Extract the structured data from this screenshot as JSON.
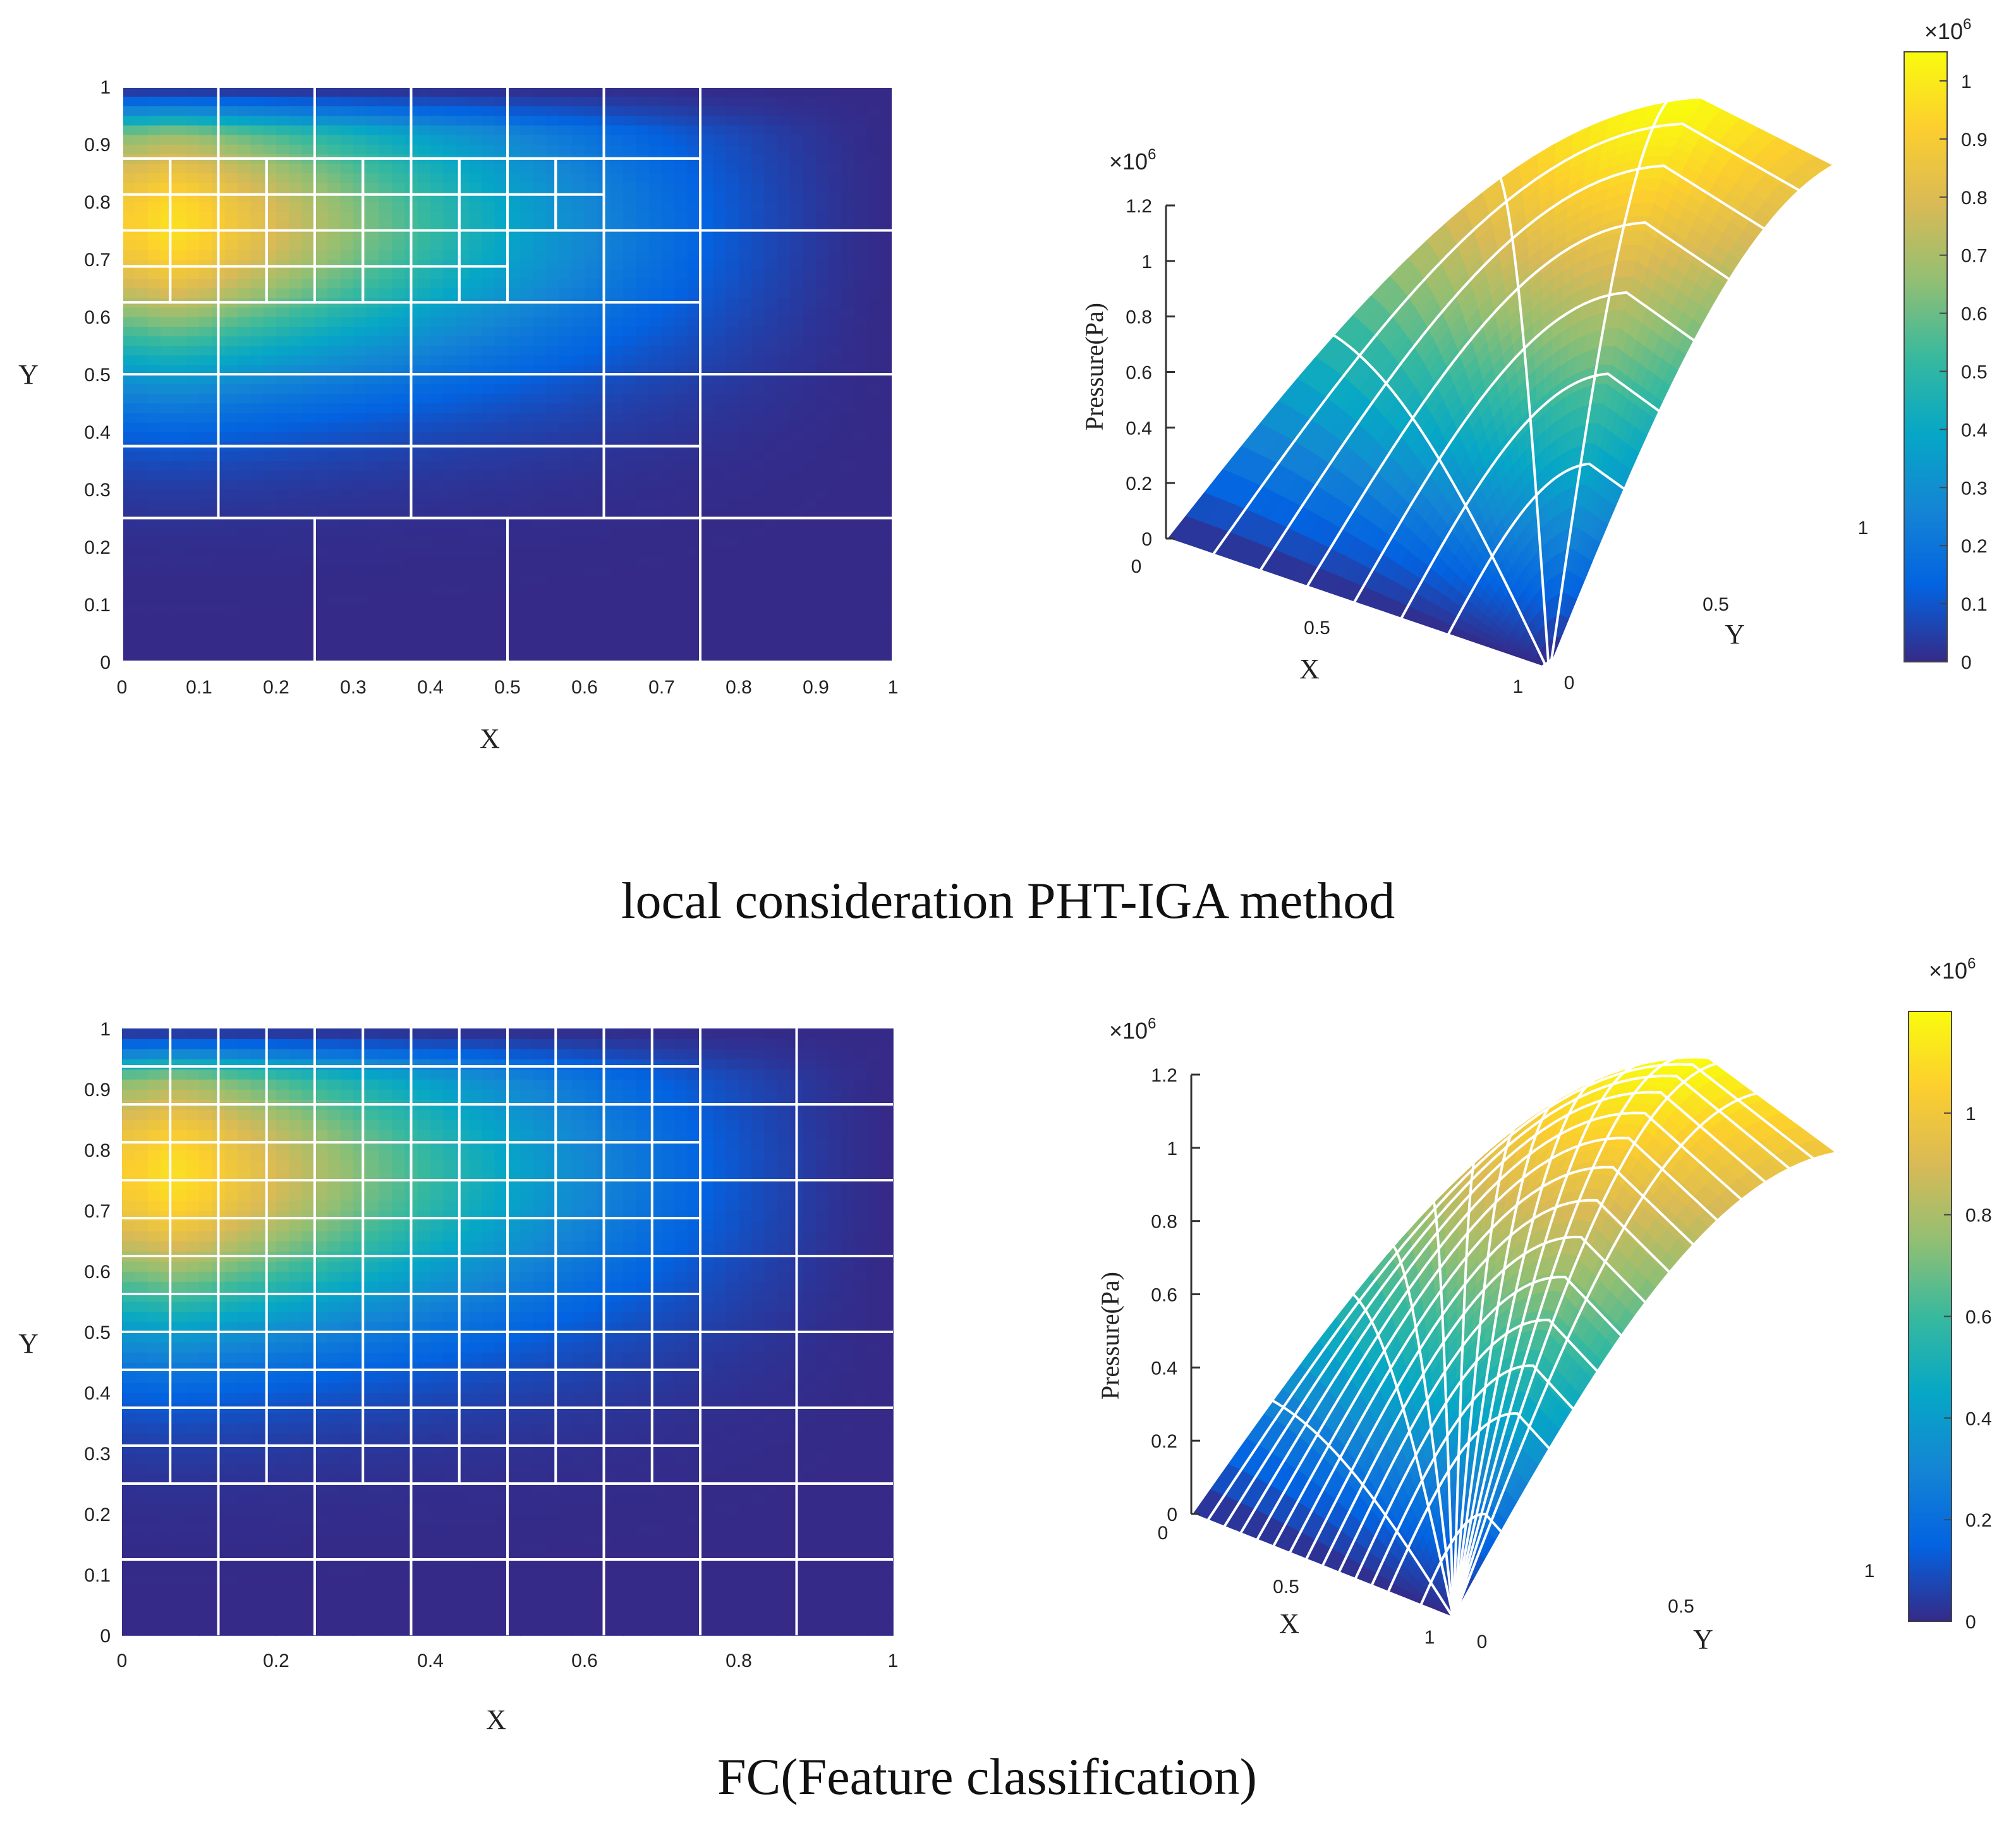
{
  "captions": {
    "top": "local consideration PHT-IGA method",
    "bottom": "FC(Feature classification)"
  },
  "colors": {
    "parula": [
      "#352a87",
      "#0363e1",
      "#1485d4",
      "#06a7c6",
      "#38b99e",
      "#92bf73",
      "#d9ba56",
      "#fcce2e",
      "#f9fb0e"
    ],
    "mesh_lines": "#ffffff",
    "text": "#222222"
  },
  "chart_data": [
    {
      "id": "top-2d",
      "type": "heatmap",
      "title": "",
      "xlabel": "X",
      "ylabel": "Y",
      "xlim": [
        0,
        1
      ],
      "ylim": [
        0,
        1
      ],
      "xticks": [
        "0",
        "0.1",
        "0.2",
        "0.3",
        "0.4",
        "0.5",
        "0.6",
        "0.7",
        "0.8",
        "0.9",
        "1"
      ],
      "yticks": [
        "0",
        "0.1",
        "0.2",
        "0.3",
        "0.4",
        "0.5",
        "0.6",
        "0.7",
        "0.8",
        "0.9",
        "1"
      ],
      "grid": false,
      "field_peak": [
        0.1,
        0.78
      ],
      "field_max": 1050000.0,
      "mesh_cells": [
        [
          0,
          0,
          0.25,
          0.25
        ],
        [
          0.25,
          0,
          0.5,
          0.25
        ],
        [
          0.5,
          0,
          0.75,
          0.25
        ],
        [
          0.75,
          0,
          1,
          0.25
        ],
        [
          0.75,
          0.25,
          1,
          0.5
        ],
        [
          0.75,
          0.5,
          1,
          0.75
        ],
        [
          0.75,
          0.75,
          1,
          1
        ],
        [
          0,
          0.25,
          0.125,
          0.375
        ],
        [
          0.125,
          0.25,
          0.375,
          0.375
        ],
        [
          0.375,
          0.25,
          0.625,
          0.375
        ],
        [
          0.625,
          0.25,
          0.75,
          0.375
        ],
        [
          0,
          0.375,
          0.125,
          0.5
        ],
        [
          0.125,
          0.375,
          0.375,
          0.5
        ],
        [
          0.375,
          0.375,
          0.625,
          0.5
        ],
        [
          0.625,
          0.375,
          0.75,
          0.5
        ],
        [
          0,
          0.5,
          0.125,
          0.625
        ],
        [
          0.125,
          0.5,
          0.375,
          0.625
        ],
        [
          0.375,
          0.5,
          0.625,
          0.625
        ],
        [
          0.625,
          0.5,
          0.75,
          0.625
        ],
        [
          0.625,
          0.625,
          0.75,
          0.75
        ],
        [
          0.625,
          0.75,
          0.75,
          0.875
        ],
        [
          0.625,
          0.875,
          0.75,
          1
        ],
        [
          0,
          0.875,
          0.125,
          1
        ],
        [
          0.125,
          0.875,
          0.25,
          1
        ],
        [
          0.25,
          0.875,
          0.375,
          1
        ],
        [
          0.375,
          0.875,
          0.5,
          1
        ],
        [
          0.5,
          0.875,
          0.625,
          1
        ],
        [
          0.5,
          0.625,
          0.625,
          0.75
        ],
        [
          0.5,
          0.75,
          0.5625,
          0.8125
        ],
        [
          0.5625,
          0.75,
          0.625,
          0.8125
        ],
        [
          0.5,
          0.8125,
          0.5625,
          0.875
        ],
        [
          0.5625,
          0.8125,
          0.625,
          0.875
        ],
        [
          0.375,
          0.625,
          0.4375,
          0.6875
        ],
        [
          0.4375,
          0.625,
          0.5,
          0.6875
        ],
        [
          0.375,
          0.6875,
          0.4375,
          0.75
        ],
        [
          0.4375,
          0.6875,
          0.5,
          0.75
        ],
        [
          0.375,
          0.75,
          0.4375,
          0.8125
        ],
        [
          0.4375,
          0.75,
          0.5,
          0.8125
        ],
        [
          0.375,
          0.8125,
          0.4375,
          0.875
        ],
        [
          0.4375,
          0.8125,
          0.5,
          0.875
        ],
        [
          0,
          0.625,
          0.0625,
          0.6875
        ],
        [
          0.0625,
          0.625,
          0.125,
          0.6875
        ],
        [
          0.125,
          0.625,
          0.1875,
          0.6875
        ],
        [
          0.1875,
          0.625,
          0.25,
          0.6875
        ],
        [
          0.25,
          0.625,
          0.3125,
          0.6875
        ],
        [
          0.3125,
          0.625,
          0.375,
          0.6875
        ],
        [
          0,
          0.6875,
          0.0625,
          0.75
        ],
        [
          0.0625,
          0.6875,
          0.125,
          0.75
        ],
        [
          0.125,
          0.6875,
          0.1875,
          0.75
        ],
        [
          0.1875,
          0.6875,
          0.25,
          0.75
        ],
        [
          0.25,
          0.6875,
          0.3125,
          0.75
        ],
        [
          0.3125,
          0.6875,
          0.375,
          0.75
        ],
        [
          0,
          0.75,
          0.0625,
          0.8125
        ],
        [
          0.0625,
          0.75,
          0.125,
          0.8125
        ],
        [
          0.125,
          0.75,
          0.1875,
          0.8125
        ],
        [
          0.1875,
          0.75,
          0.25,
          0.8125
        ],
        [
          0.25,
          0.75,
          0.3125,
          0.8125
        ],
        [
          0.3125,
          0.75,
          0.375,
          0.8125
        ],
        [
          0,
          0.8125,
          0.0625,
          0.875
        ],
        [
          0.0625,
          0.8125,
          0.125,
          0.875
        ],
        [
          0.125,
          0.8125,
          0.1875,
          0.875
        ],
        [
          0.1875,
          0.8125,
          0.25,
          0.875
        ],
        [
          0.25,
          0.8125,
          0.3125,
          0.875
        ],
        [
          0.3125,
          0.8125,
          0.375,
          0.875
        ]
      ]
    },
    {
      "id": "top-3d",
      "type": "surface",
      "title": "",
      "xlabel": "X",
      "ylabel": "Y",
      "zlabel": "Pressure(Pa)",
      "zmult": "×10",
      "zmult_exp": "6",
      "zlim": [
        0,
        1.2
      ],
      "zticks": [
        "0",
        "0.2",
        "0.4",
        "0.6",
        "0.8",
        "1",
        "1.2"
      ],
      "xticks": [
        "0",
        "0.5",
        "1"
      ],
      "yticks": [
        "0",
        "0.5",
        "1"
      ],
      "mesh_u": [
        0,
        0.125,
        0.25,
        0.375,
        0.5,
        0.625,
        0.75,
        1
      ],
      "mesh_v": [
        0,
        0.25,
        0.5,
        0.75,
        1
      ],
      "peak": [
        0.0,
        1.0,
        1.07
      ]
    },
    {
      "id": "top-colorbar",
      "type": "colorbar",
      "multiplier": "×10",
      "multiplier_exp": "6",
      "range": [
        0,
        1.05
      ],
      "ticks": [
        "0",
        "0.1",
        "0.2",
        "0.3",
        "0.4",
        "0.5",
        "0.6",
        "0.7",
        "0.8",
        "0.9",
        "1"
      ]
    },
    {
      "id": "bottom-2d",
      "type": "heatmap",
      "title": "",
      "xlabel": "X",
      "ylabel": "Y",
      "xlim": [
        0,
        1
      ],
      "ylim": [
        0,
        1
      ],
      "xticks": [
        "0",
        "0.2",
        "0.4",
        "0.6",
        "0.8",
        "1"
      ],
      "yticks": [
        "0",
        "0.1",
        "0.2",
        "0.3",
        "0.4",
        "0.5",
        "0.6",
        "0.7",
        "0.8",
        "0.9",
        "1"
      ],
      "grid": false,
      "field_peak": [
        0.1,
        0.78
      ],
      "field_max": 1200000.0,
      "mesh_vlines_full": [
        0.125,
        0.25,
        0.375,
        0.5,
        0.625,
        0.75,
        0.875
      ],
      "mesh_fine_step": 0.0625,
      "mesh_fine_region": [
        0,
        0.25,
        0.75,
        1
      ],
      "mesh_hlines": [
        0.125,
        0.25,
        0.375,
        0.5,
        0.625,
        0.75,
        0.875
      ]
    },
    {
      "id": "bottom-3d",
      "type": "surface",
      "title": "",
      "xlabel": "X",
      "ylabel": "Y",
      "zlabel": "Pressure(Pa)",
      "zmult": "×10",
      "zmult_exp": "6",
      "zlim": [
        0,
        1.2
      ],
      "zticks": [
        "0",
        "0.2",
        "0.4",
        "0.6",
        "0.8",
        "1",
        "1.2"
      ],
      "xticks": [
        "0",
        "0.5",
        "1"
      ],
      "yticks": [
        "0",
        "0.5",
        "1"
      ],
      "mesh_u": [
        0,
        0.0625,
        0.125,
        0.1875,
        0.25,
        0.3125,
        0.375,
        0.4375,
        0.5,
        0.5625,
        0.625,
        0.6875,
        0.75,
        0.875,
        1
      ],
      "mesh_v": [
        0,
        0.125,
        0.25,
        0.3125,
        0.375,
        0.4375,
        0.5,
        0.5625,
        0.625,
        0.6875,
        0.75,
        0.8125,
        0.875,
        1
      ],
      "peak": [
        0.0,
        1.0,
        1.2
      ]
    },
    {
      "id": "bottom-colorbar",
      "type": "colorbar",
      "multiplier": "×10",
      "multiplier_exp": "6",
      "range": [
        0,
        1.2
      ],
      "ticks": [
        "0",
        "0.2",
        "0.4",
        "0.6",
        "0.8",
        "1"
      ]
    }
  ]
}
